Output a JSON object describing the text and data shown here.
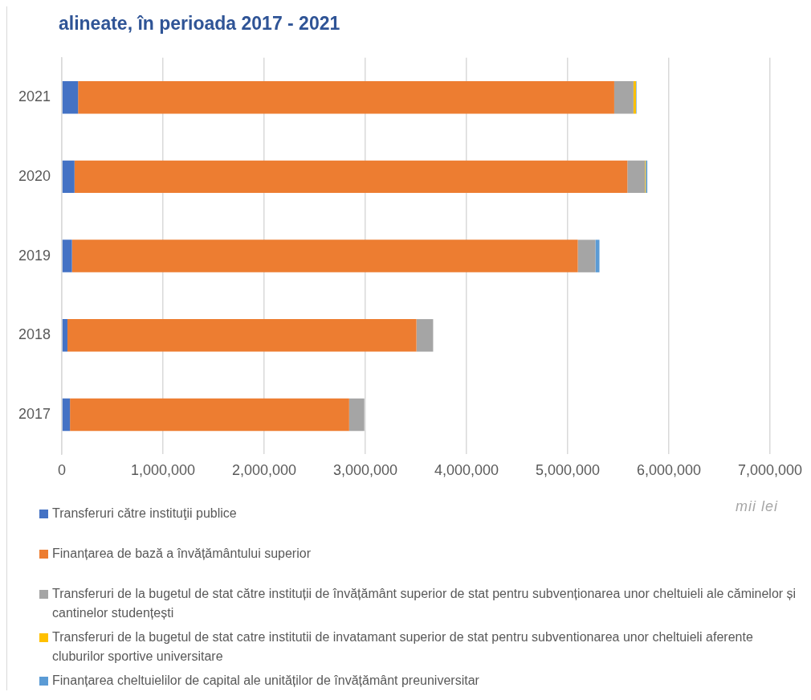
{
  "chart_data": {
    "type": "bar",
    "orientation": "horizontal",
    "stacked": true,
    "title": "alineate, în perioada 2017 - 2021",
    "categories": [
      "2021",
      "2020",
      "2019",
      "2018",
      "2017"
    ],
    "series": [
      {
        "name": "Transferuri către instituţii publice",
        "color": "#4472c4",
        "values": [
          160000,
          125000,
          100000,
          55000,
          80000
        ]
      },
      {
        "name": "Finanțarea de bază a învățământului superior",
        "color": "#ed7d31",
        "values": [
          5300000,
          5465000,
          5000000,
          3450000,
          2760000
        ]
      },
      {
        "name": "Transferuri de la bugetul de stat către instituții de învățământ superior de stat pentru subvenționarea unor cheltuieli ale căminelor și cantinelor studențești",
        "color": "#a5a5a5",
        "values": [
          190000,
          174000,
          174000,
          165000,
          150000
        ]
      },
      {
        "name": "Transferuri de la bugetul de stat catre institutii de invatamant superior de stat pentru subventionarea unor cheltuieli aferente cluburilor sportive universitare",
        "color": "#ffc000",
        "values": [
          25000,
          8000,
          0,
          0,
          0
        ]
      },
      {
        "name": "Finanțarea cheltuielilor de capital ale unităților de învățământ preuniversitar",
        "color": "#5b9bd5",
        "values": [
          5000,
          15000,
          40000,
          0,
          0
        ]
      }
    ],
    "xlim": [
      0,
      7000000
    ],
    "xticks": [
      0,
      {
        "value": 1000000,
        "label": "1,000,000"
      },
      {
        "value": 2000000,
        "label": "2,000,000"
      },
      {
        "value": 3000000,
        "label": "3,000,000"
      },
      {
        "value": 4000000,
        "label": "4,000,000"
      },
      {
        "value": 5000000,
        "label": "5,000,000"
      },
      {
        "value": 6000000,
        "label": "6,000,000"
      },
      {
        "value": 7000000,
        "label": "7,000,000"
      }
    ],
    "grid": "x",
    "legend": "bottom",
    "annotations": [
      "mii lei"
    ]
  }
}
